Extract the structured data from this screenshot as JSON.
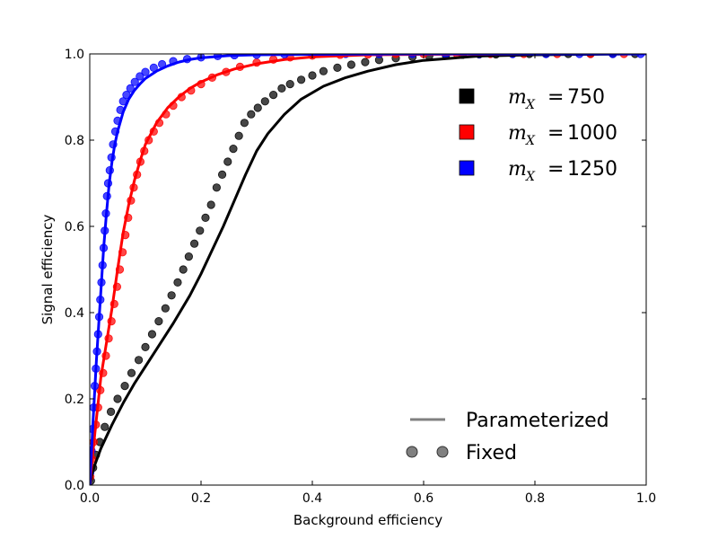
{
  "chart_data": {
    "type": "line",
    "xlabel": "Background efficiency",
    "ylabel": "Signal efficiency",
    "xlim": [
      0.0,
      1.0
    ],
    "ylim": [
      0.0,
      1.0
    ],
    "xticks": [
      0.0,
      0.2,
      0.4,
      0.6,
      0.8,
      1.0
    ],
    "yticks": [
      0.0,
      0.2,
      0.4,
      0.6,
      0.8,
      1.0
    ],
    "xtick_labels": [
      "0.0",
      "0.2",
      "0.4",
      "0.6",
      "0.8",
      "1.0"
    ],
    "ytick_labels": [
      "0.0",
      "0.2",
      "0.4",
      "0.6",
      "0.8",
      "1.0"
    ],
    "grid": false,
    "mass_legend_position": "upper-right",
    "style_legend_position": "lower-right",
    "series": [
      {
        "name": "750",
        "mass_symbol": "m",
        "mass_subscript": "X",
        "equals": "=",
        "color": "#000000",
        "parameterized": {
          "x": [
            0,
            0.005,
            0.01,
            0.02,
            0.04,
            0.06,
            0.08,
            0.1,
            0.12,
            0.15,
            0.18,
            0.2,
            0.22,
            0.24,
            0.26,
            0.28,
            0.3,
            0.32,
            0.35,
            0.38,
            0.42,
            0.46,
            0.5,
            0.55,
            0.6,
            0.7,
            0.8,
            0.9,
            1.0
          ],
          "y": [
            0,
            0.03,
            0.05,
            0.085,
            0.14,
            0.19,
            0.235,
            0.275,
            0.315,
            0.375,
            0.44,
            0.49,
            0.545,
            0.6,
            0.66,
            0.72,
            0.775,
            0.815,
            0.86,
            0.895,
            0.925,
            0.945,
            0.96,
            0.975,
            0.985,
            0.995,
            0.998,
            0.999,
            1.0
          ]
        },
        "fixed": {
          "x": [
            0.002,
            0.006,
            0.011,
            0.018,
            0.027,
            0.038,
            0.05,
            0.063,
            0.075,
            0.088,
            0.1,
            0.112,
            0.124,
            0.136,
            0.147,
            0.158,
            0.168,
            0.178,
            0.188,
            0.198,
            0.208,
            0.218,
            0.228,
            0.238,
            0.248,
            0.258,
            0.268,
            0.278,
            0.29,
            0.302,
            0.315,
            0.33,
            0.345,
            0.36,
            0.38,
            0.4,
            0.42,
            0.445,
            0.47,
            0.495,
            0.52,
            0.55,
            0.58,
            0.61,
            0.64,
            0.67,
            0.7,
            0.73,
            0.76,
            0.79,
            0.82,
            0.86,
            0.9,
            0.94,
            0.98
          ],
          "y": [
            0.01,
            0.04,
            0.07,
            0.1,
            0.135,
            0.17,
            0.2,
            0.23,
            0.26,
            0.29,
            0.32,
            0.35,
            0.38,
            0.41,
            0.44,
            0.47,
            0.5,
            0.53,
            0.56,
            0.59,
            0.62,
            0.65,
            0.69,
            0.72,
            0.75,
            0.78,
            0.81,
            0.84,
            0.86,
            0.875,
            0.89,
            0.905,
            0.92,
            0.93,
            0.94,
            0.95,
            0.96,
            0.968,
            0.975,
            0.981,
            0.986,
            0.99,
            0.993,
            0.995,
            0.997,
            0.998,
            0.999,
            0.999,
            1.0,
            1.0,
            1.0,
            1.0,
            1.0,
            1.0,
            1.0
          ]
        }
      },
      {
        "name": "1000",
        "mass_symbol": "m",
        "mass_subscript": "X",
        "equals": "=",
        "color": "#ff0000",
        "parameterized": {
          "x": [
            0,
            0.003,
            0.006,
            0.01,
            0.015,
            0.02,
            0.03,
            0.04,
            0.05,
            0.06,
            0.07,
            0.08,
            0.09,
            0.1,
            0.11,
            0.12,
            0.14,
            0.16,
            0.18,
            0.2,
            0.23,
            0.26,
            0.3,
            0.35,
            0.4,
            0.5,
            0.6,
            0.8,
            1.0
          ],
          "y": [
            0,
            0.04,
            0.08,
            0.13,
            0.19,
            0.25,
            0.33,
            0.41,
            0.5,
            0.585,
            0.65,
            0.705,
            0.75,
            0.79,
            0.815,
            0.84,
            0.875,
            0.9,
            0.92,
            0.935,
            0.952,
            0.965,
            0.977,
            0.987,
            0.993,
            0.998,
            0.999,
            1.0,
            1.0
          ]
        },
        "fixed": {
          "x": [
            0.001,
            0.004,
            0.007,
            0.011,
            0.015,
            0.019,
            0.024,
            0.029,
            0.034,
            0.039,
            0.044,
            0.049,
            0.054,
            0.059,
            0.064,
            0.069,
            0.074,
            0.079,
            0.085,
            0.091,
            0.098,
            0.106,
            0.115,
            0.125,
            0.137,
            0.15,
            0.165,
            0.182,
            0.2,
            0.22,
            0.245,
            0.27,
            0.3,
            0.33,
            0.36,
            0.4,
            0.45,
            0.5,
            0.55,
            0.6,
            0.66,
            0.72,
            0.78,
            0.84,
            0.9,
            0.96
          ],
          "y": [
            0.02,
            0.06,
            0.1,
            0.14,
            0.18,
            0.22,
            0.26,
            0.3,
            0.34,
            0.38,
            0.42,
            0.46,
            0.5,
            0.54,
            0.58,
            0.62,
            0.66,
            0.69,
            0.72,
            0.75,
            0.775,
            0.8,
            0.82,
            0.84,
            0.86,
            0.88,
            0.9,
            0.915,
            0.93,
            0.945,
            0.958,
            0.97,
            0.98,
            0.987,
            0.992,
            0.996,
            0.998,
            0.999,
            1.0,
            1.0,
            1.0,
            1.0,
            1.0,
            1.0,
            1.0,
            1.0
          ]
        }
      },
      {
        "name": "1250",
        "mass_symbol": "m",
        "mass_subscript": "X",
        "equals": "=",
        "color": "#0000ff",
        "parameterized": {
          "x": [
            0,
            0.002,
            0.004,
            0.006,
            0.009,
            0.012,
            0.016,
            0.02,
            0.025,
            0.03,
            0.035,
            0.04,
            0.045,
            0.05,
            0.06,
            0.07,
            0.08,
            0.09,
            0.1,
            0.12,
            0.14,
            0.16,
            0.18,
            0.2,
            0.25,
            0.3,
            0.4,
            0.6,
            1.0
          ],
          "y": [
            0,
            0.05,
            0.1,
            0.15,
            0.22,
            0.29,
            0.37,
            0.45,
            0.55,
            0.63,
            0.7,
            0.75,
            0.79,
            0.82,
            0.865,
            0.895,
            0.915,
            0.93,
            0.943,
            0.96,
            0.972,
            0.981,
            0.987,
            0.991,
            0.996,
            0.998,
            0.999,
            1.0,
            1.0
          ]
        },
        "fixed": {
          "x": [
            0.001,
            0.003,
            0.005,
            0.007,
            0.009,
            0.011,
            0.013,
            0.015,
            0.017,
            0.019,
            0.021,
            0.023,
            0.025,
            0.027,
            0.029,
            0.031,
            0.033,
            0.036,
            0.039,
            0.042,
            0.046,
            0.05,
            0.055,
            0.06,
            0.066,
            0.073,
            0.081,
            0.09,
            0.1,
            0.115,
            0.13,
            0.15,
            0.175,
            0.2,
            0.23,
            0.26,
            0.3,
            0.35,
            0.4,
            0.46,
            0.52,
            0.58,
            0.64,
            0.7,
            0.76,
            0.82,
            0.88,
            0.94,
            0.99
          ],
          "y": [
            0.03,
            0.08,
            0.13,
            0.18,
            0.23,
            0.27,
            0.31,
            0.35,
            0.39,
            0.43,
            0.47,
            0.51,
            0.55,
            0.59,
            0.63,
            0.67,
            0.7,
            0.73,
            0.76,
            0.79,
            0.82,
            0.845,
            0.87,
            0.89,
            0.905,
            0.92,
            0.935,
            0.948,
            0.958,
            0.968,
            0.976,
            0.983,
            0.988,
            0.992,
            0.995,
            0.997,
            0.998,
            0.999,
            1.0,
            1.0,
            1.0,
            1.0,
            1.0,
            1.0,
            1.0,
            1.0,
            1.0,
            1.0,
            1.0
          ]
        }
      }
    ],
    "style_legend": [
      {
        "label": "Parameterized",
        "marker": "line",
        "color": "#808080"
      },
      {
        "label": "Fixed",
        "marker": "circle",
        "color": "#808080"
      }
    ]
  }
}
